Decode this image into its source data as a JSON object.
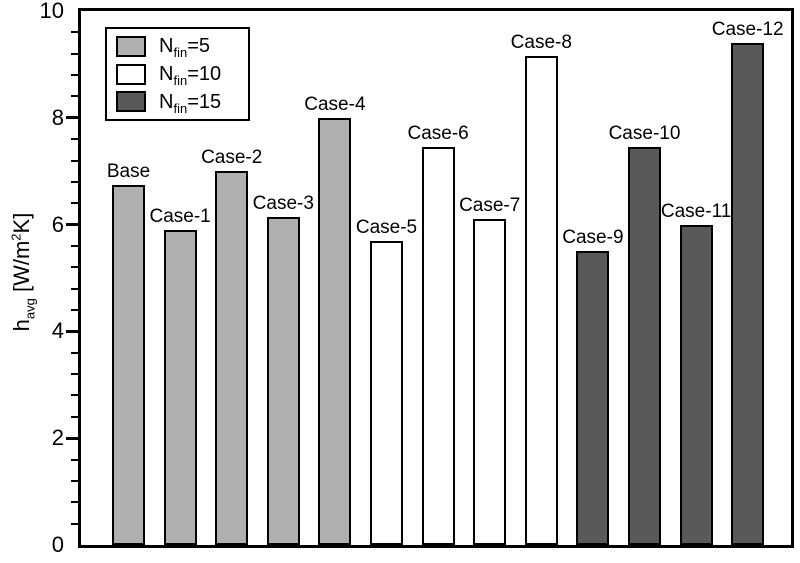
{
  "chart_data": {
    "type": "bar",
    "title": "",
    "xlabel": "",
    "ylabel": "h_avg [W/m2K]",
    "ylabel_parts": {
      "base": "h",
      "sub": "avg",
      "mid": " [W/m",
      "sup": "2",
      "end": "K]"
    },
    "ylim": [
      0,
      10
    ],
    "y_major_ticks": [
      0,
      2,
      4,
      6,
      8,
      10
    ],
    "y_minor_step": 0.4,
    "grid": false,
    "categories": [
      "Base",
      "Case-1",
      "Case-2",
      "Case-3",
      "Case-4",
      "Case-5",
      "Case-6",
      "Case-7",
      "Case-8",
      "Case-9",
      "Case-10",
      "Case-11",
      "Case-12"
    ],
    "values": [
      6.75,
      5.9,
      7.0,
      6.15,
      8.0,
      5.7,
      7.45,
      6.1,
      9.15,
      5.5,
      7.45,
      6.0,
      9.4
    ],
    "bar_groups": [
      "Nfin=5",
      "Nfin=5",
      "Nfin=5",
      "Nfin=5",
      "Nfin=5",
      "Nfin=10",
      "Nfin=10",
      "Nfin=10",
      "Nfin=10",
      "Nfin=15",
      "Nfin=15",
      "Nfin=15",
      "Nfin=15"
    ],
    "group_colors": {
      "Nfin=5": "#b0b0b0",
      "Nfin=10": "#ffffff",
      "Nfin=15": "#595959"
    },
    "bar_edge_color": "#000000",
    "legend": {
      "position": "top-left",
      "items": [
        {
          "base": "N",
          "sub": "fin",
          "suffix": "=5",
          "color": "#b0b0b0"
        },
        {
          "base": "N",
          "sub": "fin",
          "suffix": "=10",
          "color": "#ffffff"
        },
        {
          "base": "N",
          "sub": "fin",
          "suffix": "=15",
          "color": "#595959"
        }
      ]
    }
  }
}
